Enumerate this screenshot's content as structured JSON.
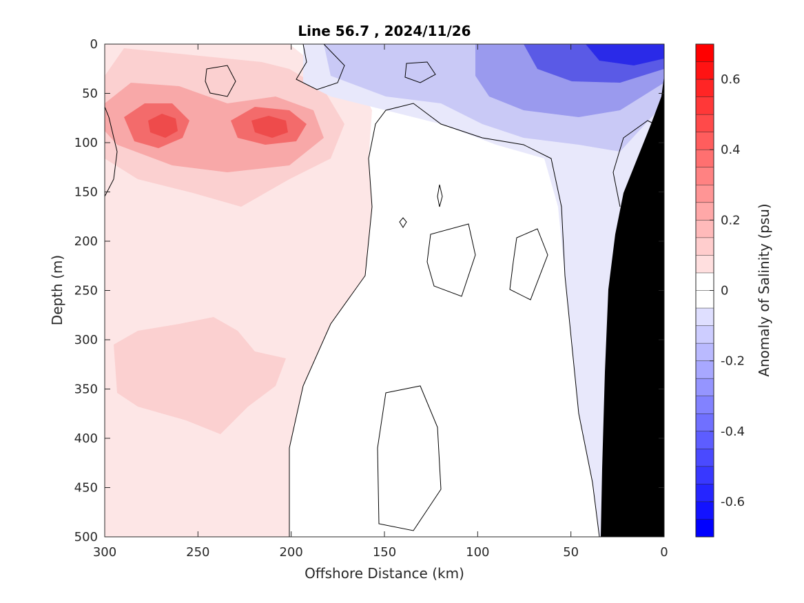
{
  "chart_data": {
    "type": "contour",
    "title": "Line 56.7 , 2024/11/26",
    "xlabel": "Offshore Distance (km)",
    "ylabel": "Depth (m)",
    "xlim": [
      300,
      0
    ],
    "ylim": [
      500,
      0
    ],
    "x_reversed": true,
    "y_reversed": true,
    "x_ticks": [
      300,
      250,
      200,
      150,
      100,
      50,
      0
    ],
    "y_ticks": [
      0,
      50,
      100,
      150,
      200,
      250,
      300,
      350,
      400,
      450,
      500
    ],
    "grid": false,
    "colorbar": {
      "label": "Anomaly of Salinity (psu)",
      "range": [
        -0.7,
        0.7
      ],
      "step": 0.05,
      "ticks": [
        0.6,
        0.4,
        0.2,
        0,
        -0.2,
        -0.4,
        -0.6
      ],
      "tick_labels": [
        "0.6",
        "0.4",
        "0.2",
        "0",
        "-0.2",
        "-0.4",
        "-0.6"
      ],
      "positive_color": "#ff0000",
      "negative_color": "#0000ff",
      "zero_color": "#ffffff"
    },
    "features": [
      {
        "name": "shallow positive core",
        "x_km": 270,
        "depth_m": 80,
        "value": 0.35
      },
      {
        "name": "shallow positive core",
        "x_km": 210,
        "depth_m": 85,
        "value": 0.35
      },
      {
        "name": "deep positive lobe",
        "x_km": 270,
        "depth_m": 340,
        "value": 0.1
      },
      {
        "name": "surface negative core",
        "x_km": 20,
        "depth_m": 5,
        "value": -0.6
      },
      {
        "name": "bottom topography",
        "x_km": 0,
        "depth_m": 500,
        "value": null
      }
    ]
  }
}
